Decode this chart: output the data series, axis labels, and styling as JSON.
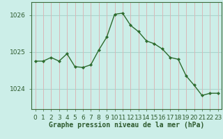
{
  "x": [
    0,
    1,
    2,
    3,
    4,
    5,
    6,
    7,
    8,
    9,
    10,
    11,
    12,
    13,
    14,
    15,
    16,
    17,
    18,
    19,
    20,
    21,
    22,
    23
  ],
  "y": [
    1024.75,
    1024.75,
    1024.85,
    1024.75,
    1024.95,
    1024.6,
    1024.58,
    1024.65,
    1025.05,
    1025.4,
    1026.02,
    1026.05,
    1025.72,
    1025.55,
    1025.3,
    1025.22,
    1025.08,
    1024.85,
    1024.8,
    1024.35,
    1024.1,
    1023.82,
    1023.88,
    1023.88
  ],
  "line_color": "#2d6b2d",
  "marker_color": "#2d6b2d",
  "bg_color": "#cceee8",
  "vgrid_color": "#d9b8b8",
  "hgrid_color": "#aad4cc",
  "axis_color": "#3a6b3a",
  "tick_color": "#2d5a2d",
  "xlabel": "Graphe pression niveau de la mer (hPa)",
  "ylim": [
    1023.45,
    1026.35
  ],
  "yticks": [
    1024,
    1025,
    1026
  ],
  "xticks": [
    0,
    1,
    2,
    3,
    4,
    5,
    6,
    7,
    8,
    9,
    10,
    11,
    12,
    13,
    14,
    15,
    16,
    17,
    18,
    19,
    20,
    21,
    22,
    23
  ],
  "xlabel_fontsize": 7.0,
  "tick_fontsize": 6.5,
  "line_width": 1.0,
  "marker_size": 2.2
}
